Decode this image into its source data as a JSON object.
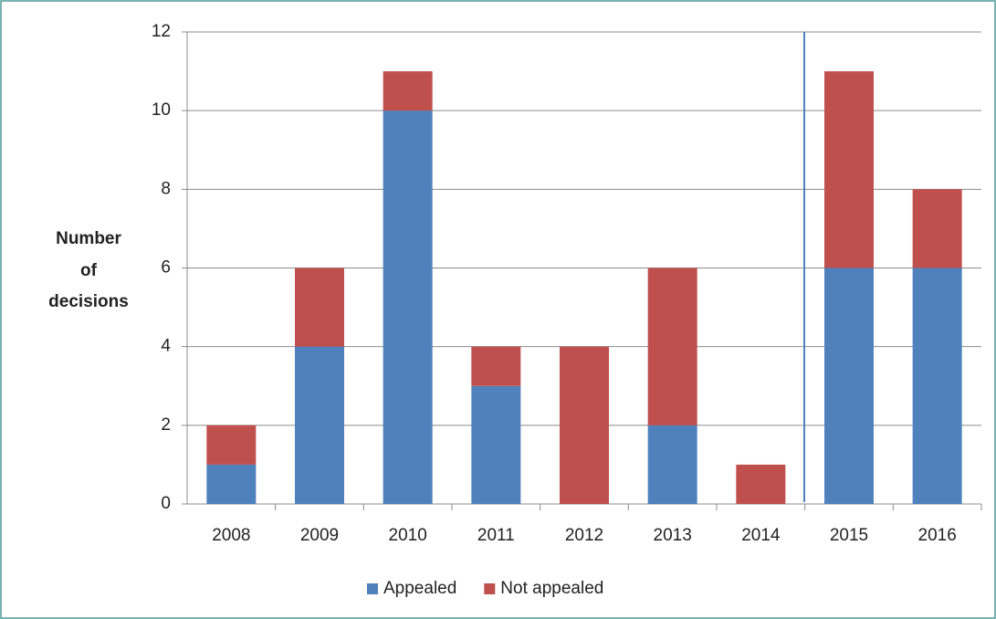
{
  "chart_data": {
    "type": "bar",
    "stacked": true,
    "ylabel": [
      "Number",
      "of",
      "decisions"
    ],
    "categories": [
      "2008",
      "2009",
      "2010",
      "2011",
      "2012",
      "2013",
      "2014",
      "2015",
      "2016"
    ],
    "series": [
      {
        "name": "Appealed",
        "color": "#4f81bd",
        "values": [
          1,
          4,
          10,
          3,
          0,
          2,
          0,
          6,
          6
        ]
      },
      {
        "name": "Not appealed",
        "color": "#c0504d",
        "values": [
          1,
          2,
          1,
          1,
          4,
          4,
          1,
          5,
          2
        ]
      }
    ],
    "ylim": [
      0,
      12
    ],
    "yticks": [
      0,
      2,
      4,
      6,
      8,
      10,
      12
    ],
    "grid": true,
    "legend": "bottom"
  }
}
